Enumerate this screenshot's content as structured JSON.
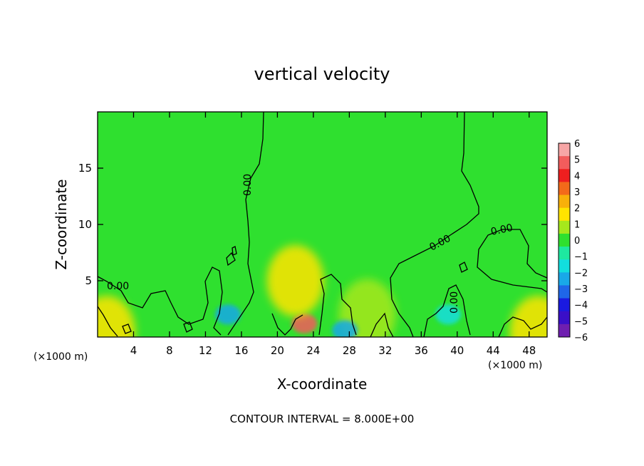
{
  "chart_data": {
    "type": "heatmap",
    "title": "vertical velocity",
    "xlabel": "X-coordinate",
    "ylabel": "Z-coordinate",
    "x_unit": "(×1000 m)",
    "z_unit": "(×1000 m)",
    "xlim": [
      0,
      50
    ],
    "ylim": [
      0,
      20
    ],
    "x_ticks": [
      4,
      8,
      12,
      16,
      20,
      24,
      28,
      32,
      36,
      40,
      44,
      48
    ],
    "y_ticks": [
      5,
      10,
      15
    ],
    "background_value": 0,
    "contour_label": "0.00",
    "contour_interval_text": "CONTOUR INTERVAL = 8.000E+00",
    "colorbar": {
      "min": -6,
      "max": 6,
      "tick_labels": [
        "6",
        "5",
        "4",
        "3",
        "2",
        "1",
        "0",
        "−1",
        "−2",
        "−3",
        "−4",
        "−5",
        "−6"
      ],
      "colors": [
        "#f7a6a6",
        "#f25c5c",
        "#ee1f1f",
        "#f36a1a",
        "#f8b00a",
        "#ffe400",
        "#a6e81c",
        "#2fe02f",
        "#1ee8a0",
        "#12dede",
        "#19a8e8",
        "#1f66e8",
        "#1a1ae0",
        "#3a0fc8",
        "#6f1fb0"
      ]
    },
    "features": [
      {
        "kind": "updraft",
        "x": 23,
        "z": 1.2,
        "value": 4.5
      },
      {
        "kind": "updraft",
        "x": 22,
        "z": 5,
        "value": 1.2
      },
      {
        "kind": "updraft",
        "x": 30,
        "z": 2,
        "value": 1
      },
      {
        "kind": "downdraft",
        "x": 14.5,
        "z": 2,
        "value": -2
      },
      {
        "kind": "downdraft",
        "x": 39,
        "z": 2,
        "value": -1.8
      },
      {
        "kind": "downdraft",
        "x": 27.5,
        "z": 0.6,
        "value": -2.5
      },
      {
        "kind": "updraft",
        "x": 1,
        "z": 0.5,
        "value": 1.5
      },
      {
        "kind": "updraft",
        "x": 49,
        "z": 0.5,
        "value": 1.5
      }
    ]
  }
}
